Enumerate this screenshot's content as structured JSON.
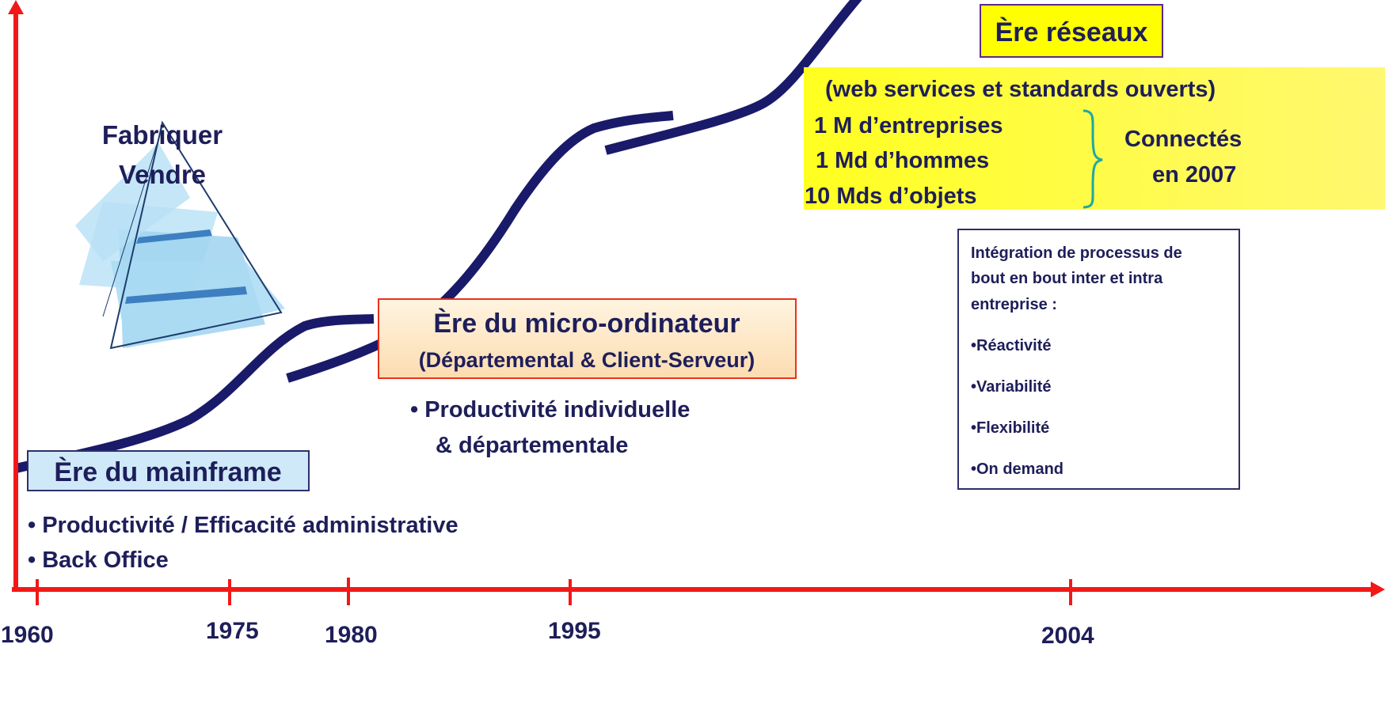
{
  "left": {
    "lines": [
      "Fabriquer",
      "Vendre"
    ]
  },
  "mainframe": {
    "title": "Ère du mainframe",
    "bullets": [
      "• Productivité / Efficacité administrative",
      "• Back Office"
    ]
  },
  "micro": {
    "title": "Ère du micro-ordinateur",
    "subtitle": "(Départemental & Client-Serveur)",
    "bullets": [
      "• Productivité individuelle",
      "& départementale"
    ]
  },
  "networks": {
    "title": "Ère réseaux",
    "subtitle": "(web services et standards ouverts)",
    "items": [
      "1 M d’entreprises",
      "1 Md  d’hommes",
      "10 Mds d’objets"
    ],
    "connected": [
      "Connectés",
      "en 2007"
    ]
  },
  "integration": {
    "intro": [
      "Intégration de processus  de",
      "bout en bout  inter et intra",
      "entreprise :"
    ],
    "items": [
      "•Réactivité",
      "•Variabilité",
      "•Flexibilité",
      "•On demand"
    ]
  },
  "timeline": {
    "years": [
      "1960",
      "1975",
      "1980",
      "1995",
      "2004"
    ]
  }
}
